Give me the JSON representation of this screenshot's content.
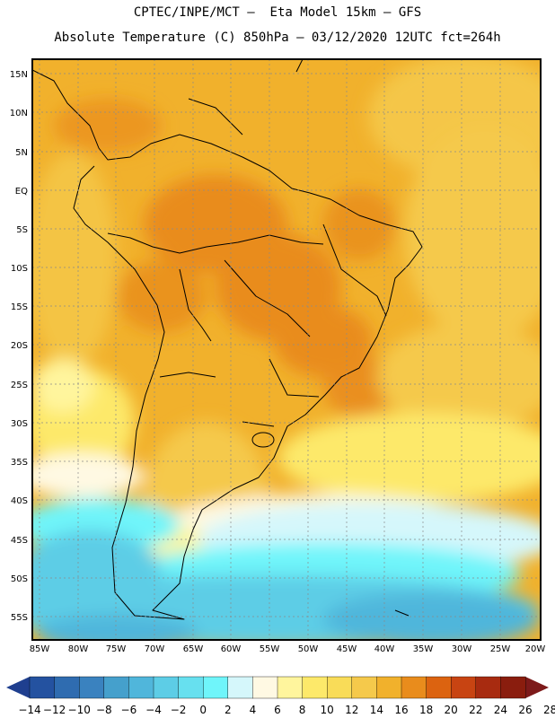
{
  "header": {
    "line1": "CPTEC/INPE/MCT –  Eta Model 15km – GFS",
    "line2": "Absolute Temperature (C) 850hPa – 03/12/2020 12UTC fct=264h"
  },
  "axes": {
    "lat_labels": [
      "15N",
      "10N",
      "5N",
      "EQ",
      "5S",
      "10S",
      "15S",
      "20S",
      "25S",
      "30S",
      "35S",
      "40S",
      "45S",
      "50S",
      "55S"
    ],
    "lon_labels": [
      "85W",
      "80W",
      "75W",
      "70W",
      "65W",
      "60W",
      "55W",
      "50W",
      "45W",
      "40W",
      "35W",
      "30W",
      "25W",
      "20W"
    ]
  },
  "colorbar": {
    "labels": [
      "−14",
      "−12",
      "−10",
      "−8",
      "−6",
      "−4",
      "−2",
      "0",
      "2",
      "4",
      "6",
      "8",
      "10",
      "12",
      "14",
      "16",
      "18",
      "20",
      "22",
      "24",
      "26",
      "28"
    ],
    "colors": [
      "#1f3f8f",
      "#2452a0",
      "#2f6cb0",
      "#3a82bf",
      "#45a0cc",
      "#50b6db",
      "#5dcde6",
      "#67e0ef",
      "#6ff5fa",
      "#d5f7fb",
      "#fff9e3",
      "#fff59d",
      "#fde96a",
      "#f9dc58",
      "#f5c94b",
      "#f1b12c",
      "#e98c1c",
      "#dc6310",
      "#c84412",
      "#a82b10",
      "#8a1d0e",
      "#7d1a1a"
    ]
  }
}
